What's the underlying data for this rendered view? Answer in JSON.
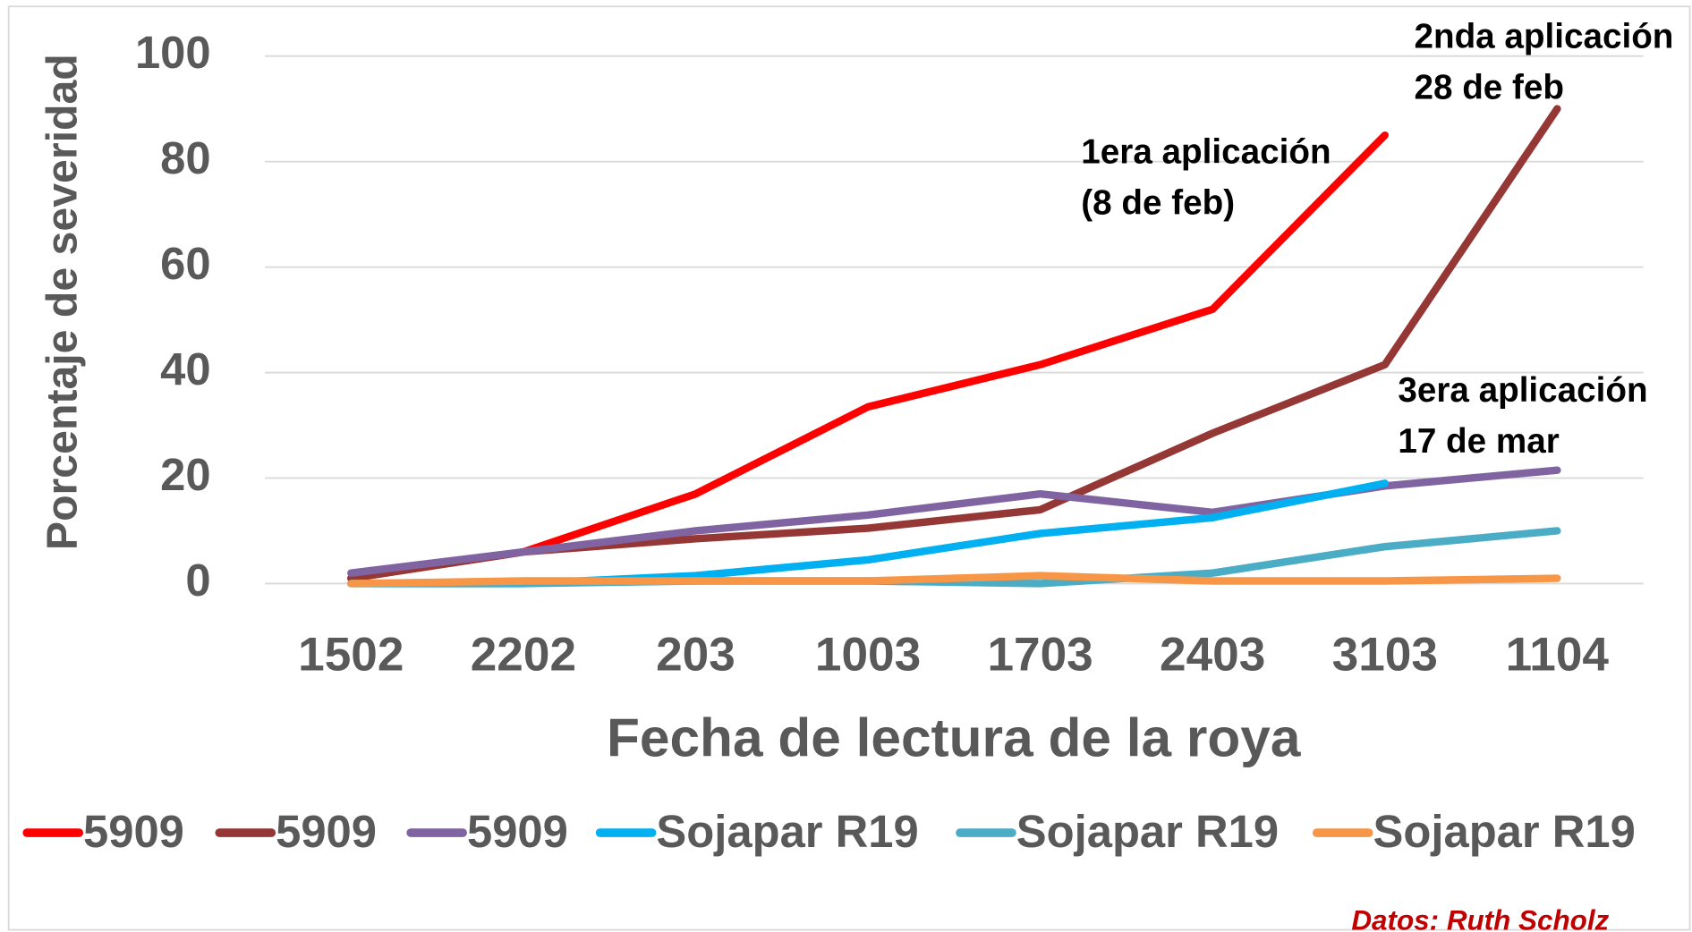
{
  "chart_data": {
    "type": "line",
    "xlabel": "Fecha de lectura de la roya",
    "ylabel": "Porcentaje de severidad",
    "categories": [
      "1502",
      "2202",
      "203",
      "1003",
      "1703",
      "2403",
      "3103",
      "1104"
    ],
    "series": [
      {
        "name": "5909",
        "color": "#ff0000",
        "values": [
          1,
          6,
          17,
          33.5,
          41.5,
          52,
          85,
          null
        ]
      },
      {
        "name": "5909",
        "color": "#953735",
        "values": [
          1,
          6,
          8.5,
          10.5,
          14,
          28.5,
          41.5,
          90
        ]
      },
      {
        "name": "5909",
        "color": "#8064a2",
        "values": [
          2,
          6,
          10,
          13,
          17,
          13.5,
          18.5,
          21.5
        ]
      },
      {
        "name": "Sojapar R19",
        "color": "#00b0f0",
        "values": [
          0,
          0,
          1.5,
          4.5,
          9.5,
          12.5,
          19,
          null
        ]
      },
      {
        "name": "Sojapar R19",
        "color": "#4bacc6",
        "values": [
          0,
          0,
          0.5,
          0.5,
          0,
          2,
          7,
          10
        ]
      },
      {
        "name": "Sojapar R19",
        "color": "#f79646",
        "values": [
          0,
          0.5,
          0.5,
          0.5,
          1.5,
          0.5,
          0.5,
          1
        ]
      }
    ],
    "ylim": [
      0,
      100
    ],
    "yticks": [
      0,
      20,
      40,
      60,
      80,
      100
    ],
    "grid": true,
    "legend": "bottom",
    "annotations": [
      "1era  aplicación",
      "(8 de feb)",
      "2nda aplicación",
      "28 de feb",
      "3era  aplicación",
      "17 de mar"
    ],
    "source": "Datos: Ruth Scholz"
  }
}
